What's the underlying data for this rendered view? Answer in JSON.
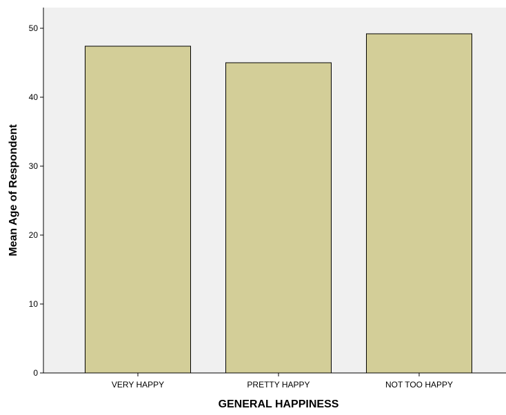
{
  "chart_data": {
    "type": "bar",
    "categories": [
      "VERY HAPPY",
      "PRETTY HAPPY",
      "NOT TOO HAPPY"
    ],
    "values": [
      47.4,
      45.0,
      49.2
    ],
    "xlabel": "GENERAL HAPPINESS",
    "ylabel": "Mean Age of Respondent",
    "ylim": [
      0,
      53
    ],
    "yticks": [
      0,
      10,
      20,
      30,
      40,
      50
    ],
    "grid": false,
    "legend": "none"
  },
  "colors": {
    "plot_background": "#f0f0f0",
    "bar_fill": "#d3ce98",
    "bar_stroke": "#000000",
    "axis": "#000000"
  }
}
